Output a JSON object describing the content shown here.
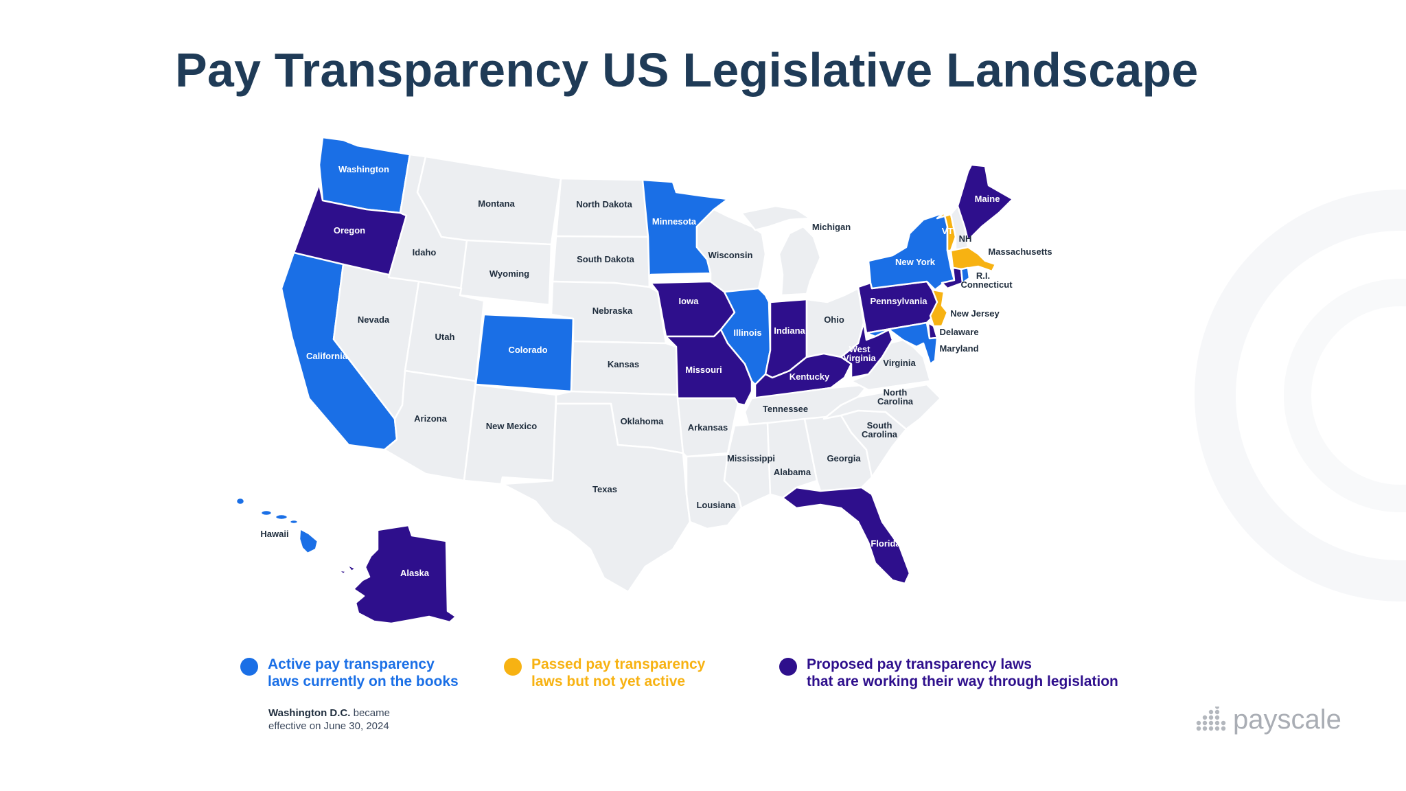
{
  "title": "Pay Transparency US Legislative Landscape",
  "colors": {
    "active": "#1a6fe6",
    "passed": "#f7b212",
    "proposed": "#2e0f8c",
    "none": "#eceef1",
    "border": "#ffffff",
    "title": "#1f3b57"
  },
  "legend": [
    {
      "status": "active",
      "line1": "Active pay transparency",
      "line2": "laws currently on the books"
    },
    {
      "status": "passed",
      "line1": "Passed pay transparency",
      "line2": "laws but not yet active"
    },
    {
      "status": "proposed",
      "line1": "Proposed pay transparency laws",
      "line2": "that are working their way through legislation"
    }
  ],
  "dc_note": {
    "bold": "Washington D.C.",
    "rest": " became",
    "line2": "effective on June 30, 2024"
  },
  "brand": "payscale",
  "states": [
    {
      "id": "washington",
      "label": "Washington",
      "status": "active"
    },
    {
      "id": "oregon",
      "label": "Oregon",
      "status": "proposed"
    },
    {
      "id": "california",
      "label": "California",
      "status": "active"
    },
    {
      "id": "nevada",
      "label": "Nevada",
      "status": "none"
    },
    {
      "id": "idaho",
      "label": "Idaho",
      "status": "none"
    },
    {
      "id": "montana",
      "label": "Montana",
      "status": "none"
    },
    {
      "id": "wyoming",
      "label": "Wyoming",
      "status": "none"
    },
    {
      "id": "utah",
      "label": "Utah",
      "status": "none"
    },
    {
      "id": "arizona",
      "label": "Arizona",
      "status": "none"
    },
    {
      "id": "colorado",
      "label": "Colorado",
      "status": "active"
    },
    {
      "id": "new-mexico",
      "label": "New Mexico",
      "status": "none"
    },
    {
      "id": "north-dakota",
      "label": "North Dakota",
      "status": "none"
    },
    {
      "id": "south-dakota",
      "label": "South Dakota",
      "status": "none"
    },
    {
      "id": "nebraska",
      "label": "Nebraska",
      "status": "none"
    },
    {
      "id": "kansas",
      "label": "Kansas",
      "status": "none"
    },
    {
      "id": "oklahoma",
      "label": "Oklahoma",
      "status": "none"
    },
    {
      "id": "texas",
      "label": "Texas",
      "status": "none"
    },
    {
      "id": "minnesota",
      "label": "Minnesota",
      "status": "active"
    },
    {
      "id": "iowa",
      "label": "Iowa",
      "status": "proposed"
    },
    {
      "id": "missouri",
      "label": "Missouri",
      "status": "proposed"
    },
    {
      "id": "arkansas",
      "label": "Arkansas",
      "status": "none"
    },
    {
      "id": "lousiana",
      "label": "Lousiana",
      "status": "none"
    },
    {
      "id": "wisconsin",
      "label": "Wisconsin",
      "status": "none"
    },
    {
      "id": "illinois",
      "label": "Illinois",
      "status": "active"
    },
    {
      "id": "michigan",
      "label": "Michigan",
      "status": "none"
    },
    {
      "id": "indiana",
      "label": "Indiana",
      "status": "proposed"
    },
    {
      "id": "ohio",
      "label": "Ohio",
      "status": "none"
    },
    {
      "id": "kentucky",
      "label": "Kentucky",
      "status": "proposed"
    },
    {
      "id": "tennessee",
      "label": "Tennessee",
      "status": "none"
    },
    {
      "id": "mississippi",
      "label": "Mississippi",
      "status": "none"
    },
    {
      "id": "alabama",
      "label": "Alabama",
      "status": "none"
    },
    {
      "id": "georgia",
      "label": "Georgia",
      "status": "none"
    },
    {
      "id": "florida",
      "label": "Florida",
      "status": "proposed"
    },
    {
      "id": "south-carolina",
      "label": "South Carolina",
      "status": "none"
    },
    {
      "id": "north-carolina",
      "label": "North Carolina",
      "status": "none"
    },
    {
      "id": "virginia",
      "label": "Virginia",
      "status": "none"
    },
    {
      "id": "west-virginia",
      "label": "West Virginia",
      "status": "proposed"
    },
    {
      "id": "pennsylvania",
      "label": "Pennsylvania",
      "status": "proposed"
    },
    {
      "id": "new-york",
      "label": "New York",
      "status": "active"
    },
    {
      "id": "vermont",
      "label": "VT",
      "status": "passed"
    },
    {
      "id": "new-hampshire",
      "label": "NH",
      "status": "none"
    },
    {
      "id": "maine",
      "label": "Maine",
      "status": "proposed"
    },
    {
      "id": "massachusetts",
      "label": "Massachusetts",
      "status": "passed"
    },
    {
      "id": "rhode-island",
      "label": "R.I.",
      "status": "active"
    },
    {
      "id": "connecticut",
      "label": "Connecticut",
      "status": "proposed"
    },
    {
      "id": "new-jersey",
      "label": "New Jersey",
      "status": "passed"
    },
    {
      "id": "delaware",
      "label": "Delaware",
      "status": "proposed"
    },
    {
      "id": "maryland",
      "label": "Maryland",
      "status": "active"
    },
    {
      "id": "hawaii",
      "label": "Hawaii",
      "status": "active"
    },
    {
      "id": "alaska",
      "label": "Alaska",
      "status": "proposed"
    }
  ]
}
